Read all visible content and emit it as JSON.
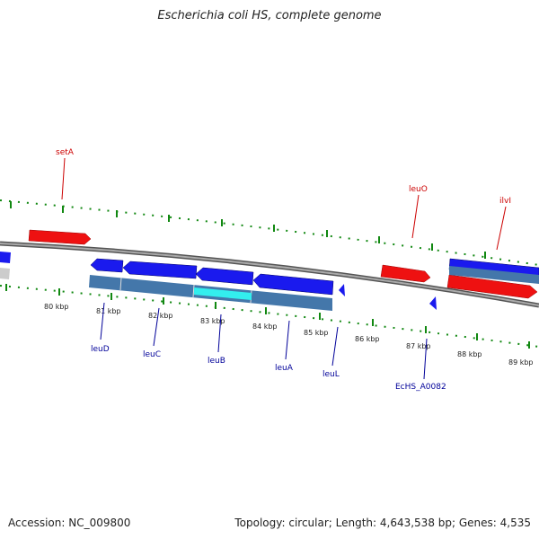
{
  "title": "Escherichia coli HS, complete genome",
  "footer": {
    "accession": "Accession: NC_009800",
    "summary": "Topology: circular; Length: 4,643,538 bp; Genes: 4,535"
  },
  "scale_labels": [
    "80 kbp",
    "81 kbp",
    "82 kbp",
    "83 kbp",
    "84 kbp",
    "85 kbp",
    "86 kbp",
    "87 kbp",
    "88 kbp",
    "89 kbp"
  ],
  "gene_labels": {
    "setA": "setA",
    "leuO": "leuO",
    "ilvI": "ilvI",
    "leuD": "leuD",
    "leuC": "leuC",
    "leuB": "leuB",
    "leuA": "leuA",
    "leuL": "leuL",
    "ecHS_A0082": "EcHS_A0082"
  },
  "colors": {
    "forward_gene": "#ee1111",
    "reverse_gene": "#1a1aee",
    "cds_track": "#4477aa",
    "highlight": "#33eeee",
    "tick": "#118811",
    "backbone": "#888888"
  }
}
